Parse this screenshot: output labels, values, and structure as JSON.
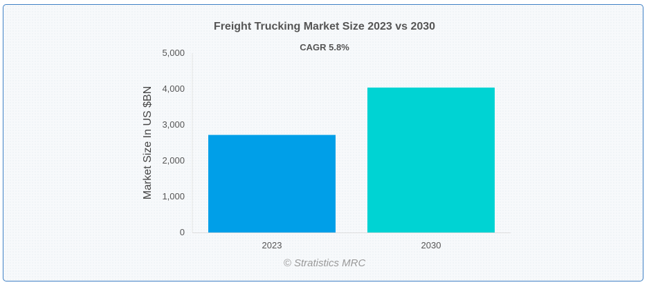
{
  "chart_data": {
    "type": "bar",
    "title": "Freight Trucking Market Size 2023 vs 2030",
    "subtitle": "CAGR 5.8%",
    "xlabel": "",
    "ylabel": "Market Size In US $BN",
    "categories": [
      "2023",
      "2030"
    ],
    "values": [
      2720,
      4040
    ],
    "ylim": [
      0,
      5000
    ],
    "yticks": [
      0,
      1000,
      2000,
      3000,
      4000,
      5000
    ],
    "ytick_labels": [
      "0",
      "1,000",
      "2,000",
      "3,000",
      "4,000",
      "5,000"
    ],
    "bar_colors": [
      "#009fe8",
      "#00d3d3"
    ],
    "grid": false,
    "legend": "none"
  },
  "credit": "© Stratistics MRC"
}
